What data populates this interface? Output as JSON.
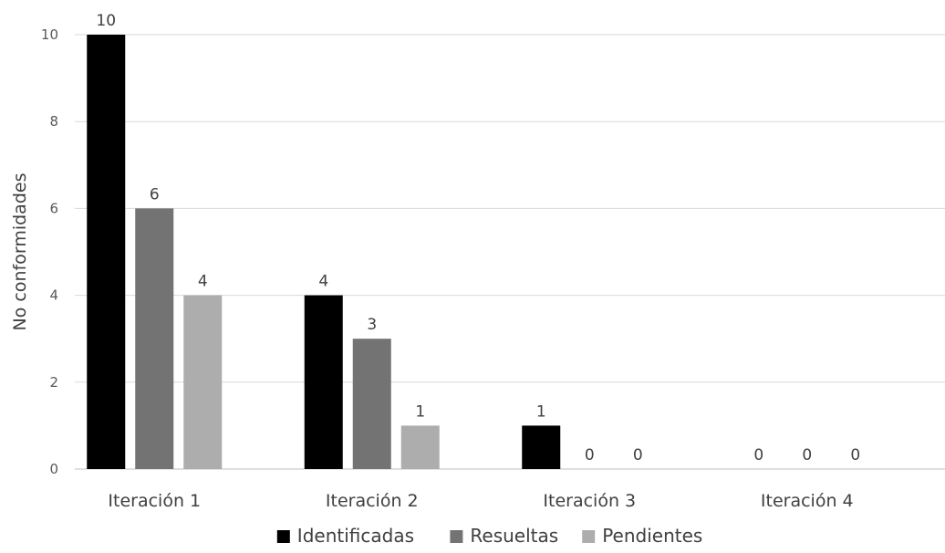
{
  "chart_data": {
    "type": "bar",
    "title": "",
    "xlabel": "",
    "ylabel": "No conformidades",
    "ylim": [
      0,
      10
    ],
    "yticks": [
      0,
      2,
      4,
      6,
      8,
      10
    ],
    "grid": true,
    "legend": "bottom",
    "categories": [
      "Iteración 1",
      "Iteración 2",
      "Iteración 3",
      "Iteración 4"
    ],
    "series": [
      {
        "name": "Identificadas",
        "values": [
          10,
          4,
          1,
          0
        ],
        "color": "#000000"
      },
      {
        "name": "Resueltas",
        "values": [
          6,
          3,
          0,
          0
        ],
        "color": "#737373"
      },
      {
        "name": "Pendientes",
        "values": [
          4,
          1,
          0,
          0
        ],
        "color": "#adadad"
      }
    ]
  }
}
